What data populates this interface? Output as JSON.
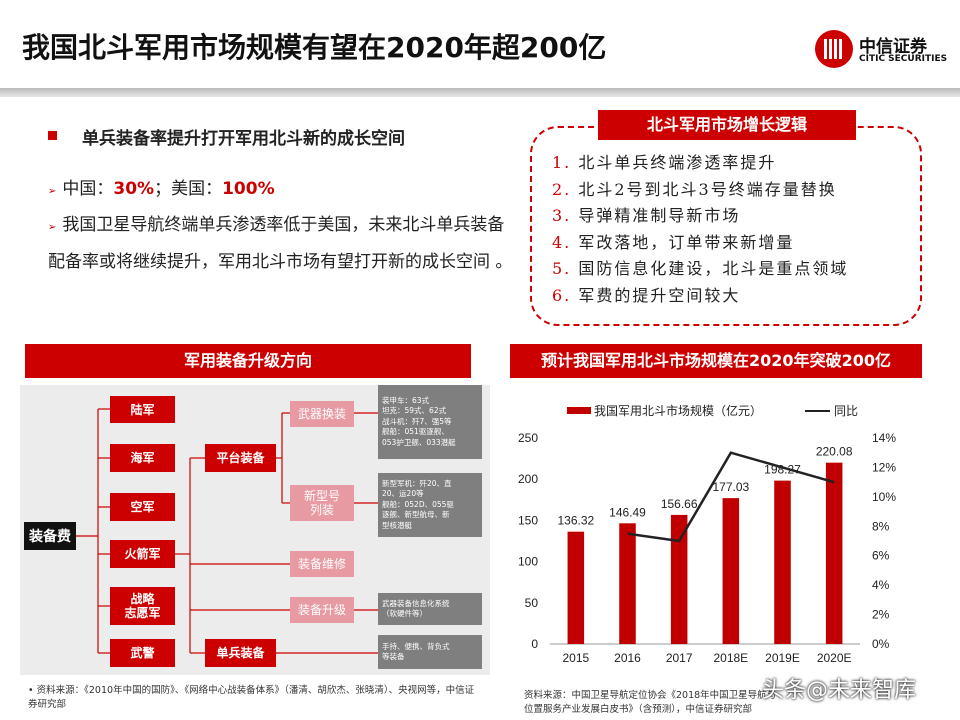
{
  "title": "我国北斗军用市场规模有望在2020年超200亿",
  "logo": {
    "cn": "中信证券",
    "en": "CITIC SECURITIES"
  },
  "left_text": {
    "heading": "单兵装备率提升打开军用北斗新的成长空间",
    "line1_prefix": "中国：",
    "line1_china": "30%",
    "line1_mid": "；美国：",
    "line1_us": "100%",
    "paragraph": "我国卫星导航终端单兵渗透率低于美国，未来北斗单兵装备配备率或将继续提升，军用北斗市场有望打开新的成长空间 。",
    "bullet_glyph": "➢"
  },
  "logic": {
    "title": "北斗军用市场增长逻辑",
    "items": [
      {
        "num": "1.",
        "text": "北斗单兵终端渗透率提升"
      },
      {
        "num": "2.",
        "text": "北斗2号到北斗3号终端存量替换"
      },
      {
        "num": "3.",
        "text": "导弹精准制导新市场"
      },
      {
        "num": "4.",
        "text": "军改落地，订单带来新增量"
      },
      {
        "num": "5.",
        "text": "国防信息化建设，北斗是重点领域"
      },
      {
        "num": "6.",
        "text": "军费的提升空间较大"
      }
    ]
  },
  "diagram": {
    "banner": "军用装备升级方向",
    "root": "装备费",
    "branches": [
      "陆军",
      "海军",
      "空军",
      "火箭军",
      "战略\n志愿军",
      "武警"
    ],
    "mid": [
      "平台装备",
      "单兵装备"
    ],
    "pink": [
      "武器换装",
      "新型号\n列装",
      "装备维修",
      "装备升级"
    ],
    "leaves": [
      "装甲车：63式\n坦克：59式、62式\n战斗机：歼7、强5等\n舰船：051驱逐舰、\n053护卫舰、033潜艇",
      "新型军机：歼20、直\n20、运20等\n舰船：052D、055驱\n逐舰、新型航母、新\n型核潜艇",
      "武器装备信息化系统\n（软硬件等）",
      "手持、便携、背负式\n等装备"
    ]
  },
  "chart_banner": "预计我国军用北斗市场规模在2020年突破200亿",
  "chart_data": {
    "type": "bar",
    "categories": [
      "2015",
      "2016",
      "2017",
      "2018E",
      "2019E",
      "2020E"
    ],
    "series": [
      {
        "name": "我国军用北斗市场规模（亿元）",
        "type": "bar",
        "axis": "left",
        "color": "#c00000",
        "values": [
          136.32,
          146.49,
          156.66,
          177.03,
          198.27,
          220.08
        ]
      },
      {
        "name": "同比",
        "type": "line",
        "axis": "right",
        "color": "#222222",
        "values": [
          null,
          7.5,
          7.0,
          13.0,
          12.0,
          11.0
        ]
      }
    ],
    "data_labels": [
      "136.32",
      "146.49",
      "156.66",
      "177.03",
      "198.27",
      "220.08"
    ],
    "ylim": [
      0,
      250
    ],
    "yticks": [
      "0",
      "50",
      "100",
      "150",
      "200",
      "250"
    ],
    "y2lim": [
      0,
      14
    ],
    "y2ticks": [
      "0%",
      "2%",
      "4%",
      "6%",
      "8%",
      "10%",
      "12%",
      "14%"
    ],
    "legend": "top",
    "grid": false
  },
  "sources": {
    "left": "资料来源：《2010年中国的国防》、《网络中心战装备体系》（潘清、胡欣杰、张晓清）、央视网等，中信证券研究部",
    "left_bullet": "•",
    "right": "资料来源：中国卫星导航定位协会《2018年中国卫星导航与位置服务产业发展白皮书》（含预测），中信证券研究部"
  },
  "watermark": "头条@未来智库"
}
